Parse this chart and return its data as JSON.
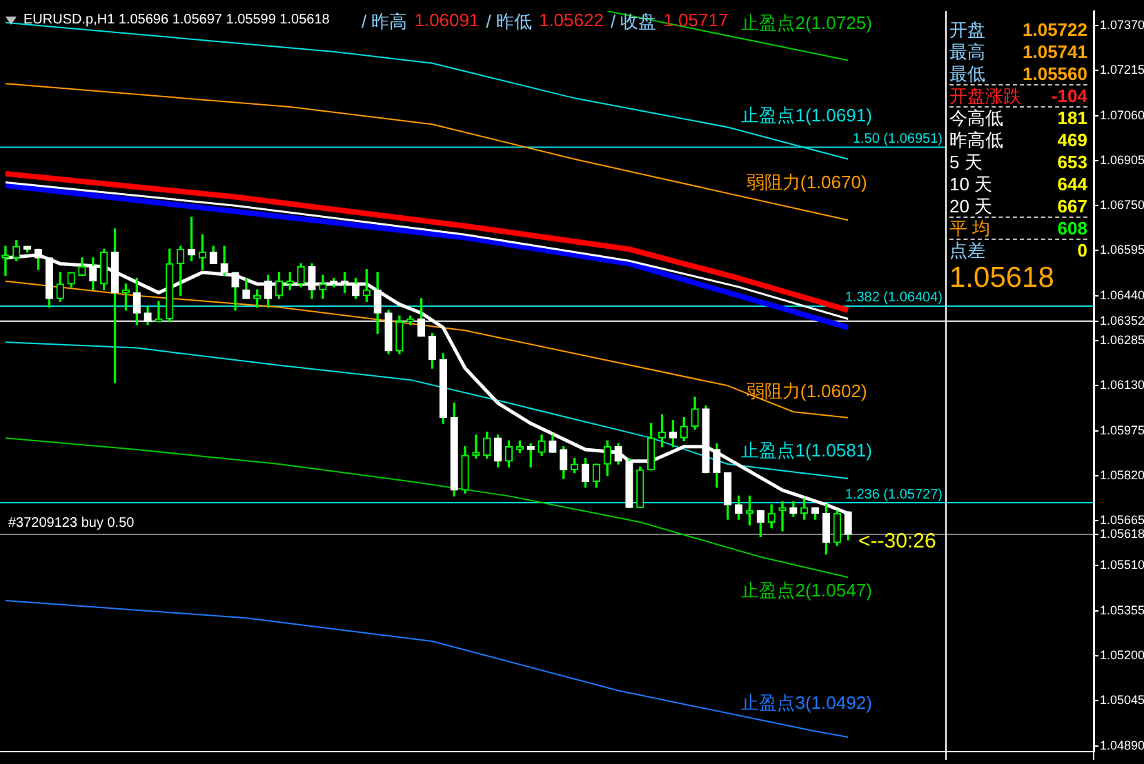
{
  "chart_data": {
    "type": "candlestick",
    "title": "EURUSD.p,H1 1.05696 1.05697 1.05599 1.05618",
    "categories": [
      null,
      null,
      null,
      null,
      null,
      null,
      null,
      null,
      null,
      null,
      null,
      null,
      null,
      null,
      null,
      null,
      null,
      null,
      null,
      null,
      null,
      null,
      null,
      null,
      null,
      null,
      null,
      null,
      null,
      null,
      null,
      null,
      null,
      null,
      null,
      null,
      null,
      null,
      null,
      null,
      null,
      null,
      null,
      null,
      null,
      null,
      null,
      null,
      null,
      null,
      null,
      null,
      null,
      null,
      null,
      null,
      null,
      null,
      null,
      null,
      null,
      null,
      null,
      null,
      null,
      null,
      null,
      null,
      null,
      null,
      null,
      null,
      null,
      null,
      null,
      null,
      null,
      null,
      null,
      null,
      null,
      null,
      null,
      null,
      null,
      null,
      null,
      null,
      null,
      null,
      null,
      null,
      null,
      null,
      null,
      null,
      null,
      null,
      null,
      null
    ],
    "ohlc": [
      [
        1.0657,
        1.0661,
        1.0651,
        1.0658
      ],
      [
        1.0657,
        1.0663,
        1.0656,
        1.0661
      ],
      [
        1.0661,
        1.0661,
        1.0659,
        1.066
      ],
      [
        1.066,
        1.066,
        1.0653,
        1.0657
      ],
      [
        1.0657,
        1.0657,
        1.064,
        1.0643
      ],
      [
        1.0643,
        1.0652,
        1.0642,
        1.0648
      ],
      [
        1.0648,
        1.0652,
        1.0647,
        1.0652
      ],
      [
        1.0651,
        1.0657,
        1.0651,
        1.0654
      ],
      [
        1.0654,
        1.0657,
        1.0646,
        1.0649
      ],
      [
        1.0648,
        1.066,
        1.0646,
        1.0659
      ],
      [
        1.0659,
        1.0667,
        1.0614,
        1.0645
      ],
      [
        1.0645,
        1.0648,
        1.0639,
        1.0646
      ],
      [
        1.0645,
        1.065,
        1.0634,
        1.0638
      ],
      [
        1.0638,
        1.064,
        1.0634,
        1.0635
      ],
      [
        1.0635,
        1.0642,
        1.0635,
        1.0636
      ],
      [
        1.0636,
        1.066,
        1.0635,
        1.0655
      ],
      [
        1.0655,
        1.0661,
        1.0644,
        1.066
      ],
      [
        1.066,
        1.0671,
        1.0656,
        1.0658
      ],
      [
        1.0657,
        1.0665,
        1.0653,
        1.0659
      ],
      [
        1.0659,
        1.0661,
        1.0655,
        1.0655
      ],
      [
        1.0655,
        1.0661,
        1.0651,
        1.0652
      ],
      [
        1.0652,
        1.0652,
        1.0639,
        1.0647
      ],
      [
        1.0646,
        1.065,
        1.0643,
        1.0643
      ],
      [
        1.0643,
        1.0646,
        1.064,
        1.0644
      ],
      [
        1.0649,
        1.0651,
        1.064,
        1.0643
      ],
      [
        1.0644,
        1.0652,
        1.0643,
        1.0649
      ],
      [
        1.0648,
        1.0652,
        1.0646,
        1.0649
      ],
      [
        1.0648,
        1.0655,
        1.0647,
        1.0654
      ],
      [
        1.0654,
        1.0655,
        1.0643,
        1.0646
      ],
      [
        1.0646,
        1.0651,
        1.0643,
        1.0648
      ],
      [
        1.0649,
        1.065,
        1.0647,
        1.0648
      ],
      [
        1.0649,
        1.0652,
        1.0645,
        1.0648
      ],
      [
        1.0648,
        1.065,
        1.0643,
        1.0644
      ],
      [
        1.0644,
        1.0653,
        1.0642,
        1.0646
      ],
      [
        1.0646,
        1.0652,
        1.0631,
        1.0638
      ],
      [
        1.0638,
        1.0639,
        1.0624,
        1.0625
      ],
      [
        1.0625,
        1.0637,
        1.0624,
        1.0635
      ],
      [
        1.0635,
        1.0637,
        1.0634,
        1.0636
      ],
      [
        1.0636,
        1.0643,
        1.063,
        1.063
      ],
      [
        1.063,
        1.0631,
        1.0619,
        1.0622
      ],
      [
        1.0622,
        1.0624,
        1.06,
        1.0602
      ],
      [
        1.0602,
        1.0607,
        1.0575,
        1.0577
      ],
      [
        1.0577,
        1.0592,
        1.0576,
        1.0589
      ],
      [
        1.0589,
        1.0596,
        1.0588,
        1.059
      ],
      [
        1.0589,
        1.0597,
        1.0588,
        1.0595
      ],
      [
        1.0595,
        1.0596,
        1.0585,
        1.0587
      ],
      [
        1.0587,
        1.0594,
        1.0585,
        1.0592
      ],
      [
        1.0591,
        1.0594,
        1.059,
        1.0592
      ],
      [
        1.0592,
        1.0593,
        1.0585,
        1.0591
      ],
      [
        1.059,
        1.0596,
        1.0589,
        1.0594
      ],
      [
        1.0594,
        1.0596,
        1.059,
        1.059
      ],
      [
        1.0591,
        1.0592,
        1.0581,
        1.0584
      ],
      [
        1.0584,
        1.0588,
        1.0583,
        1.0586
      ],
      [
        1.0586,
        1.0588,
        1.0578,
        1.058
      ],
      [
        1.058,
        1.0586,
        1.0578,
        1.0586
      ],
      [
        1.0586,
        1.0594,
        1.0582,
        1.0592
      ],
      [
        1.0592,
        1.0593,
        1.0586,
        1.0587
      ],
      [
        1.0587,
        1.0588,
        1.0571,
        1.0571
      ],
      [
        1.0571,
        1.0585,
        1.0571,
        1.0584
      ],
      [
        1.0584,
        1.06,
        1.0584,
        1.0595
      ],
      [
        1.0595,
        1.0603,
        1.0592,
        1.0597
      ],
      [
        1.0597,
        1.0601,
        1.0592,
        1.0595
      ],
      [
        1.0595,
        1.0602,
        1.0594,
        1.0599
      ],
      [
        1.0599,
        1.0609,
        1.0598,
        1.0605
      ],
      [
        1.0605,
        1.0606,
        1.0583,
        1.0583
      ],
      [
        1.0591,
        1.0593,
        1.0578,
        1.0583
      ],
      [
        1.0583,
        1.0583,
        1.0567,
        1.0572
      ],
      [
        1.0572,
        1.0575,
        1.0567,
        1.0569
      ],
      [
        1.0569,
        1.0575,
        1.0565,
        1.057
      ],
      [
        1.057,
        1.057,
        1.0561,
        1.0566
      ],
      [
        1.0566,
        1.0572,
        1.0564,
        1.0569
      ],
      [
        1.057,
        1.0573,
        1.0563,
        1.0571
      ],
      [
        1.0571,
        1.0573,
        1.0568,
        1.0569
      ],
      [
        1.0569,
        1.0574,
        1.0567,
        1.0571
      ],
      [
        1.0571,
        1.0571,
        1.0567,
        1.0569
      ],
      [
        1.0569,
        1.0572,
        1.0555,
        1.0559
      ],
      [
        1.0559,
        1.057,
        1.0558,
        1.0569
      ],
      [
        1.05696,
        1.05697,
        1.05599,
        1.05618
      ],
      null,
      null,
      null,
      null,
      null,
      null,
      null,
      null,
      null,
      null,
      null,
      null,
      null,
      null,
      null,
      null,
      null,
      null,
      null,
      null,
      null,
      null
    ],
    "series": [
      {
        "type": "line",
        "name": "止盈点2(1.0725)",
        "color": "#00c800",
        "values": [
          null,
          null,
          null,
          null,
          null,
          null,
          null,
          null,
          null,
          null,
          null,
          null,
          null,
          null,
          null,
          null,
          null,
          null,
          null,
          null,
          null,
          null,
          null,
          null,
          null,
          null,
          null,
          null,
          null,
          null,
          null,
          null,
          null,
          null,
          null,
          null,
          null,
          null,
          null,
          null,
          null,
          null,
          null,
          null,
          null,
          null,
          null,
          null,
          null,
          null,
          null,
          null,
          null,
          null,
          null,
          1.0742,
          null,
          null,
          null,
          null,
          null,
          null,
          null,
          null,
          null,
          null,
          null,
          null,
          null,
          null,
          null,
          null,
          null,
          null,
          null,
          null,
          null,
          1.0725,
          null,
          null,
          null,
          null,
          null,
          null,
          null,
          null,
          null,
          null,
          null,
          null,
          null,
          null,
          null,
          null,
          null,
          null,
          null,
          null,
          null,
          null
        ]
      },
      {
        "type": "line",
        "name": "止盈点1(1.0691)",
        "color": "#00e0e0",
        "values": [
          1.0738,
          null,
          null,
          null,
          null,
          null,
          null,
          null,
          null,
          null,
          null,
          null,
          null,
          null,
          null,
          null,
          null,
          null,
          null,
          null,
          null,
          null,
          null,
          null,
          null,
          null,
          null,
          null,
          null,
          null,
          1.0728,
          null,
          null,
          null,
          null,
          null,
          null,
          null,
          null,
          1.0724,
          null,
          null,
          null,
          null,
          null,
          null,
          null,
          null,
          null,
          null,
          null,
          null,
          1.0712,
          null,
          null,
          null,
          null,
          null,
          null,
          null,
          null,
          null,
          null,
          null,
          null,
          null,
          1.0702,
          null,
          null,
          null,
          null,
          null,
          null,
          null,
          null,
          null,
          null,
          1.0691,
          null,
          null,
          null,
          null,
          null,
          null,
          null,
          null,
          null,
          null,
          null,
          null,
          null,
          null,
          null,
          null,
          null,
          null,
          null,
          null,
          null,
          null
        ]
      },
      {
        "type": "line",
        "name": "弱阻力(1.0670)",
        "color": "#ff9900",
        "values": [
          1.0717,
          null,
          null,
          null,
          null,
          null,
          null,
          null,
          null,
          null,
          null,
          null,
          null,
          null,
          null,
          null,
          null,
          null,
          null,
          null,
          null,
          null,
          null,
          null,
          null,
          null,
          1.0709,
          null,
          null,
          null,
          null,
          null,
          null,
          null,
          null,
          null,
          null,
          null,
          null,
          1.0703,
          null,
          null,
          null,
          null,
          null,
          null,
          null,
          null,
          null,
          null,
          null,
          null,
          1.0691,
          null,
          null,
          null,
          null,
          null,
          null,
          null,
          null,
          null,
          null,
          null,
          null,
          null,
          null,
          null,
          null,
          null,
          null,
          null,
          null,
          null,
          null,
          null,
          null,
          1.067,
          null,
          null,
          null,
          null,
          null,
          null,
          null,
          null,
          null,
          null,
          null,
          null,
          null,
          null,
          null,
          null,
          null,
          null,
          null,
          null,
          null,
          null
        ]
      },
      {
        "type": "line",
        "color": "#ff0000",
        "values": [
          1.0686,
          null,
          null,
          null,
          null,
          null,
          null,
          null,
          null,
          null,
          null,
          null,
          null,
          null,
          null,
          null,
          null,
          null,
          null,
          null,
          null,
          1.0678,
          null,
          null,
          null,
          null,
          null,
          null,
          null,
          null,
          null,
          null,
          null,
          null,
          null,
          null,
          null,
          null,
          null,
          null,
          null,
          null,
          1.0668,
          null,
          null,
          null,
          null,
          null,
          null,
          null,
          null,
          null,
          null,
          null,
          null,
          null,
          null,
          1.066,
          null,
          null,
          null,
          null,
          null,
          null,
          null,
          null,
          null,
          1.065,
          null,
          null,
          null,
          null,
          null,
          null,
          null,
          null,
          null,
          1.0639,
          null,
          null,
          null,
          null,
          null,
          null,
          null,
          null,
          null,
          null,
          null,
          null,
          null,
          null,
          null,
          null,
          null,
          null,
          null,
          null,
          null,
          null
        ]
      },
      {
        "type": "line",
        "color": "#ffffff",
        "values": [
          1.0683,
          null,
          null,
          null,
          null,
          null,
          null,
          null,
          null,
          null,
          null,
          null,
          null,
          null,
          null,
          null,
          null,
          null,
          null,
          null,
          null,
          1.0675,
          null,
          null,
          null,
          null,
          null,
          null,
          null,
          null,
          null,
          null,
          null,
          null,
          null,
          null,
          null,
          null,
          null,
          null,
          null,
          null,
          1.0665,
          null,
          null,
          null,
          null,
          null,
          null,
          null,
          null,
          null,
          null,
          null,
          null,
          null,
          null,
          1.0656,
          null,
          null,
          null,
          null,
          null,
          null,
          null,
          null,
          null,
          1.0647,
          null,
          null,
          null,
          null,
          null,
          null,
          null,
          null,
          null,
          1.0636,
          null,
          null,
          null,
          null,
          null,
          null,
          null,
          null,
          null,
          null,
          null,
          null,
          null,
          null,
          null,
          null,
          null,
          null,
          null,
          null,
          null,
          null
        ]
      },
      {
        "type": "line",
        "color": "#0000ff",
        "values": [
          1.0682,
          null,
          null,
          null,
          null,
          null,
          null,
          null,
          null,
          null,
          null,
          null,
          null,
          null,
          null,
          null,
          null,
          null,
          null,
          null,
          null,
          1.0673,
          null,
          null,
          null,
          null,
          null,
          null,
          null,
          null,
          null,
          null,
          null,
          null,
          null,
          null,
          null,
          null,
          null,
          null,
          null,
          null,
          1.0664,
          null,
          null,
          null,
          null,
          null,
          null,
          null,
          null,
          null,
          null,
          null,
          null,
          null,
          null,
          1.0655,
          null,
          null,
          null,
          null,
          null,
          null,
          null,
          null,
          null,
          1.0644,
          null,
          null,
          null,
          null,
          null,
          null,
          null,
          null,
          null,
          1.0633,
          null,
          null,
          null,
          null,
          null,
          null,
          null,
          null,
          null,
          null,
          null,
          null,
          null,
          null,
          null,
          null,
          null,
          null,
          null,
          null,
          null,
          null
        ]
      },
      {
        "type": "line",
        "color": "#ffffff",
        "values": [
          1.0657,
          null,
          null,
          1.0658,
          null,
          1.0655,
          null,
          null,
          null,
          1.0654,
          null,
          null,
          null,
          null,
          1.0645,
          null,
          null,
          null,
          1.0652,
          null,
          null,
          1.0651,
          null,
          1.0648,
          null,
          null,
          null,
          null,
          null,
          null,
          null,
          null,
          null,
          1.0648,
          null,
          null,
          1.0641,
          null,
          1.0638,
          null,
          1.0633,
          null,
          1.0619,
          null,
          null,
          1.0607,
          null,
          null,
          1.06,
          null,
          null,
          null,
          null,
          1.0591,
          null,
          null,
          1.059,
          1.0587,
          null,
          1.0587,
          null,
          null,
          1.0592,
          null,
          1.0592,
          1.059,
          null,
          null,
          null,
          null,
          null,
          1.0577,
          null,
          null,
          null,
          1.0572,
          null,
          1.0569,
          null,
          null,
          null,
          null,
          null,
          null,
          null,
          null,
          null,
          null,
          null,
          null,
          null,
          null,
          null,
          null,
          null,
          null,
          null,
          null,
          null,
          null
        ]
      },
      {
        "type": "line",
        "name": "弱阻力(1.0602)",
        "color": "#ff9900",
        "values": [
          1.0649,
          null,
          null,
          null,
          null,
          null,
          null,
          null,
          null,
          null,
          null,
          null,
          1.0644,
          null,
          null,
          null,
          null,
          null,
          null,
          null,
          null,
          null,
          null,
          null,
          null,
          1.064,
          null,
          null,
          null,
          null,
          null,
          null,
          null,
          null,
          null,
          null,
          null,
          null,
          null,
          null,
          null,
          null,
          1.0632,
          null,
          null,
          null,
          null,
          null,
          null,
          null,
          null,
          null,
          null,
          null,
          null,
          null,
          null,
          null,
          null,
          null,
          null,
          null,
          null,
          null,
          null,
          null,
          1.0613,
          null,
          null,
          null,
          null,
          null,
          1.0604,
          null,
          null,
          null,
          null,
          1.0602,
          null,
          null,
          null,
          null,
          null,
          null,
          null,
          null,
          null,
          null,
          null,
          null,
          null,
          null,
          null,
          null,
          null,
          null,
          null,
          null,
          null,
          null
        ]
      },
      {
        "type": "line",
        "name": "止盈点1(1.0581)",
        "color": "#00e0e0",
        "values": [
          1.0628,
          null,
          null,
          null,
          null,
          null,
          null,
          null,
          null,
          null,
          null,
          null,
          1.0626,
          null,
          null,
          null,
          null,
          null,
          null,
          null,
          null,
          null,
          null,
          null,
          null,
          1.062,
          null,
          null,
          null,
          null,
          null,
          null,
          null,
          null,
          null,
          null,
          null,
          1.0615,
          null,
          null,
          null,
          null,
          null,
          null,
          null,
          null,
          1.0607,
          null,
          null,
          null,
          null,
          null,
          null,
          null,
          null,
          null,
          null,
          null,
          null,
          1.0595,
          null,
          null,
          null,
          null,
          null,
          null,
          1.0586,
          null,
          null,
          null,
          null,
          null,
          null,
          null,
          null,
          null,
          null,
          1.0581,
          null,
          null,
          null,
          null,
          null,
          null,
          null,
          null,
          null,
          null,
          null,
          null,
          null,
          null,
          null,
          null,
          null,
          null,
          null,
          null,
          null,
          null
        ]
      },
      {
        "type": "line",
        "name": "止盈点2(1.0547)",
        "color": "#00c800",
        "values": [
          1.0595,
          null,
          null,
          null,
          null,
          null,
          null,
          null,
          null,
          null,
          null,
          null,
          1.0591,
          null,
          null,
          null,
          null,
          null,
          null,
          null,
          null,
          null,
          null,
          null,
          null,
          1.0586,
          null,
          null,
          null,
          null,
          null,
          null,
          null,
          null,
          null,
          null,
          null,
          1.058,
          null,
          null,
          null,
          null,
          null,
          null,
          null,
          null,
          1.0575,
          null,
          null,
          null,
          null,
          null,
          null,
          null,
          null,
          null,
          null,
          null,
          1.0566,
          null,
          null,
          null,
          null,
          null,
          null,
          null,
          null,
          null,
          null,
          1.0554,
          null,
          null,
          null,
          null,
          null,
          null,
          null,
          1.0547,
          null,
          null,
          null,
          null,
          null,
          null,
          null,
          null,
          null,
          null,
          null,
          null,
          null,
          null,
          null,
          null,
          null,
          null,
          null,
          null,
          null,
          null
        ]
      },
      {
        "type": "line",
        "name": "止盈点3(1.0492)",
        "color": "#1e78ff",
        "values": [
          1.0539,
          null,
          null,
          null,
          null,
          null,
          null,
          null,
          null,
          null,
          null,
          null,
          null,
          null,
          null,
          null,
          null,
          null,
          null,
          null,
          null,
          null,
          1.0533,
          null,
          null,
          null,
          null,
          null,
          null,
          null,
          null,
          null,
          null,
          null,
          null,
          null,
          null,
          null,
          null,
          1.0525,
          null,
          null,
          null,
          null,
          null,
          null,
          null,
          null,
          null,
          null,
          null,
          null,
          null,
          null,
          null,
          null,
          1.0508,
          null,
          null,
          null,
          null,
          null,
          null,
          null,
          null,
          null,
          null,
          null,
          null,
          null,
          null,
          null,
          null,
          null,
          1.0494,
          null,
          null,
          1.0492,
          null,
          null,
          null,
          null,
          null,
          null,
          null,
          null,
          null,
          null,
          null,
          null,
          null,
          null,
          null,
          null,
          null,
          null,
          null,
          null,
          null,
          null
        ]
      }
    ],
    "ylim": [
      1.0487,
      1.0742
    ],
    "yticks": [
      {
        "value": 1.0489,
        "label": "1.04890"
      },
      1.05045,
      {
        "value": 1.052,
        "label": "1.05200"
      },
      1.05355,
      {
        "value": 1.0551,
        "label": "1.05510"
      },
      1.05618,
      1.05665,
      {
        "value": 1.0582,
        "label": "1.05820"
      },
      1.05975,
      {
        "value": 1.0613,
        "label": "1.06130"
      },
      1.06285,
      1.06352,
      {
        "value": 1.0644,
        "label": "1.06440"
      },
      1.06595,
      {
        "value": 1.0675,
        "label": "1.06750"
      },
      1.06905,
      {
        "value": 1.0706,
        "label": "1.07060"
      },
      1.07215,
      {
        "value": 1.0737,
        "label": "1.07370"
      }
    ],
    "tick_labels": "y",
    "ref_lines": [
      {
        "axis": "y",
        "value": 1.06951,
        "label": "1.50 (1.06951)",
        "color": "#00e0e0"
      },
      {
        "axis": "y",
        "value": 1.06404,
        "label": "1.382 (1.06404)",
        "color": "#00e0e0"
      },
      {
        "axis": "y",
        "value": 1.06352,
        "color": "#ffffff"
      },
      {
        "axis": "y",
        "value": 1.05727,
        "label": "1.236 (1.05727)",
        "color": "#00e0e0"
      },
      {
        "axis": "y",
        "value": 1.05618,
        "color": "#808080"
      }
    ],
    "annotations": [
      "/ 昨高",
      "1.06091",
      "/ 昨低",
      "1.05622",
      "/ 收盘",
      "1.05717",
      "开盘",
      "1.05722",
      "最高",
      "1.05741",
      "最低",
      "1.05560",
      "开盘涨跌",
      "-104",
      "今高低",
      "181",
      "昨高低",
      "469",
      "5 天",
      "653",
      "10 天",
      "644",
      "20 天",
      "667",
      "平 均",
      "608",
      "点差",
      "0",
      "1.05618",
      "<--30:26",
      {
        "text": "#37209123 buy 0.50",
        "y": 1.05618
      }
    ]
  }
}
